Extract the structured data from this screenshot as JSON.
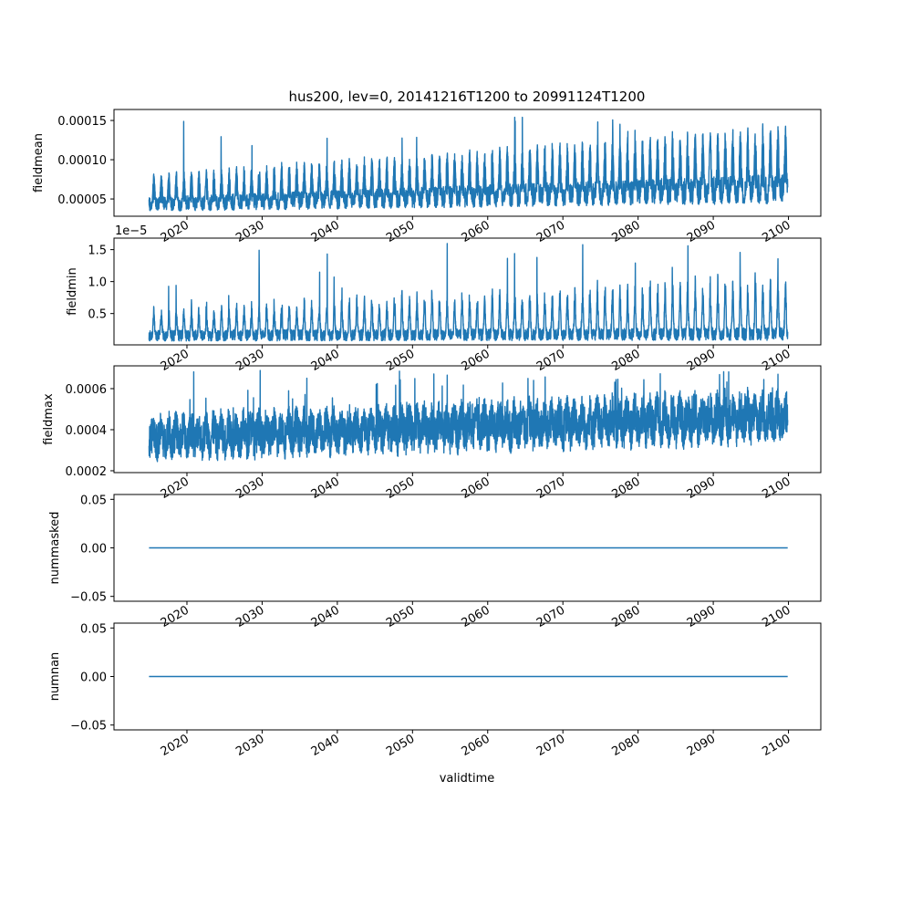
{
  "figure": {
    "title": "hus200, lev=0, 20141216T1200 to 20991124T1200",
    "xlabel": "validtime",
    "line_color": "#1f77b4",
    "offset_text": "1e−5"
  },
  "chart_data": [
    {
      "type": "line",
      "ylabel": "fieldmean",
      "xlim": [
        2010.3,
        2104.3
      ],
      "ylim": [
        2.8e-05,
        0.000164
      ],
      "yticks": [
        5e-05,
        0.0001,
        0.00015
      ],
      "ytick_labels": [
        "0.00005",
        "0.00010",
        "0.00015"
      ],
      "xticks": [
        2020,
        2030,
        2040,
        2050,
        2060,
        2070,
        2080,
        2090,
        2100
      ],
      "xtick_labels": [
        "2020",
        "2030",
        "2040",
        "2050",
        "2060",
        "2070",
        "2080",
        "2090",
        "2100"
      ],
      "series": [
        {
          "x_start": "2014-12-16",
          "x_end": "2099-11-24",
          "seasonal_min_start": 3.8e-05,
          "seasonal_min_end": 5.2e-05,
          "seasonal_max_start": 7.9e-05,
          "seasonal_max_end": 0.000137,
          "peak_max": 0.000157
        }
      ]
    },
    {
      "type": "line",
      "ylabel": "fieldmin",
      "xlim": [
        2010.3,
        2104.3
      ],
      "ylim": [
        1e-07,
        1.68e-05
      ],
      "yticks": [
        5e-06,
        1e-05,
        1.5e-05
      ],
      "ytick_labels": [
        "0.5",
        "1.0",
        "1.5"
      ],
      "xticks": [
        2020,
        2030,
        2040,
        2050,
        2060,
        2070,
        2080,
        2090,
        2100
      ],
      "xtick_labels": [
        "2020",
        "2030",
        "2040",
        "2050",
        "2060",
        "2070",
        "2080",
        "2090",
        "2100"
      ],
      "series": [
        {
          "x_start": "2014-12-16",
          "x_end": "2099-11-24",
          "seasonal_min_start": 1.2e-06,
          "seasonal_min_end": 1.4e-06,
          "seasonal_max_start": 5.5e-06,
          "seasonal_max_end": 1.1e-05,
          "peak_max": 1.62e-05
        }
      ]
    },
    {
      "type": "line",
      "ylabel": "fieldmax",
      "xlim": [
        2010.3,
        2104.3
      ],
      "ylim": [
        0.000191,
        0.000711
      ],
      "yticks": [
        0.0002,
        0.0004,
        0.0006
      ],
      "ytick_labels": [
        "0.0002",
        "0.0004",
        "0.0006"
      ],
      "xticks": [
        2020,
        2030,
        2040,
        2050,
        2060,
        2070,
        2080,
        2090,
        2100
      ],
      "xtick_labels": [
        "2020",
        "2030",
        "2040",
        "2050",
        "2060",
        "2070",
        "2080",
        "2090",
        "2100"
      ],
      "series": [
        {
          "x_start": "2014-12-16",
          "x_end": "2099-11-24",
          "seasonal_min_start": 0.00026,
          "seasonal_min_end": 0.00034,
          "seasonal_max_start": 0.00046,
          "seasonal_max_end": 0.00058,
          "peak_max": 0.00069
        }
      ]
    },
    {
      "type": "line",
      "ylabel": "nummasked",
      "xlim": [
        2010.3,
        2104.3
      ],
      "ylim": [
        -0.055,
        0.055
      ],
      "yticks": [
        -0.05,
        0,
        0.05
      ],
      "ytick_labels": [
        "−0.05",
        "0.00",
        "0.05"
      ],
      "xticks": [
        2020,
        2030,
        2040,
        2050,
        2060,
        2070,
        2080,
        2090,
        2100
      ],
      "xtick_labels": [
        "2020",
        "2030",
        "2040",
        "2050",
        "2060",
        "2070",
        "2080",
        "2090",
        "2100"
      ],
      "series": [
        {
          "x": [
            "2014-12-16",
            "2099-11-24"
          ],
          "y": [
            0,
            0
          ]
        }
      ]
    },
    {
      "type": "line",
      "ylabel": "numnan",
      "xlim": [
        2010.3,
        2104.3
      ],
      "ylim": [
        -0.055,
        0.055
      ],
      "yticks": [
        -0.05,
        0,
        0.05
      ],
      "ytick_labels": [
        "−0.05",
        "0.00",
        "0.05"
      ],
      "xticks": [
        2020,
        2030,
        2040,
        2050,
        2060,
        2070,
        2080,
        2090,
        2100
      ],
      "xtick_labels": [
        "2020",
        "2030",
        "2040",
        "2050",
        "2060",
        "2070",
        "2080",
        "2090",
        "2100"
      ],
      "series": [
        {
          "x": [
            "2014-12-16",
            "2099-11-24"
          ],
          "y": [
            0,
            0
          ]
        }
      ]
    }
  ]
}
